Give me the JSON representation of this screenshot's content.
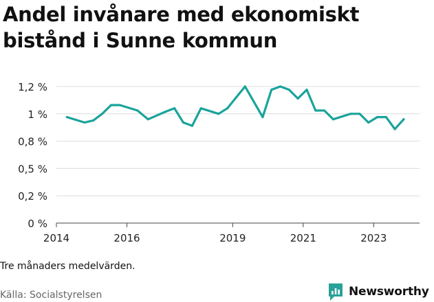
{
  "title": "Andel invånare med ekonomiskt bistånd i Sunne kommun",
  "note": "Tre månaders medelvärden.",
  "source": "Källa: Socialstyrelsen",
  "brand": {
    "name": "Newsworthy",
    "color": "#2aa198"
  },
  "chart_data": {
    "type": "line",
    "title": "Andel invånare med ekonomiskt bistånd i Sunne kommun",
    "xlabel": "",
    "ylabel": "",
    "xlim": [
      2014.0,
      2024.3
    ],
    "ylim": [
      0,
      1.25
    ],
    "y_ticks": [
      0,
      0.25,
      0.5,
      0.75,
      1.0,
      1.25
    ],
    "y_tick_labels": [
      "0 %",
      "0,2 %",
      "0,5 %",
      "0,8 %",
      "1 %",
      "1,2 %"
    ],
    "x_ticks": [
      2014,
      2016,
      2019,
      2021,
      2023
    ],
    "x_tick_labels": [
      "2014",
      "2016",
      "2019",
      "2021",
      "2023"
    ],
    "grid": true,
    "color": "#1aa39a",
    "series": [
      {
        "points": [
          [
            2014.3,
            0.97
          ],
          [
            2014.8,
            0.92
          ],
          [
            2015.05,
            0.94
          ],
          [
            2015.3,
            1.0
          ],
          [
            2015.55,
            1.08
          ],
          [
            2015.8,
            1.08
          ],
          [
            2016.3,
            1.03
          ],
          [
            2016.6,
            0.95
          ],
          [
            2017.1,
            1.02
          ],
          [
            2017.35,
            1.05
          ],
          [
            2017.6,
            0.92
          ],
          [
            2017.85,
            0.89
          ],
          [
            2018.1,
            1.05
          ],
          [
            2018.6,
            1.0
          ],
          [
            2018.85,
            1.05
          ],
          [
            2019.1,
            1.15
          ],
          [
            2019.35,
            1.25
          ],
          [
            2019.6,
            1.11
          ],
          [
            2019.85,
            0.97
          ],
          [
            2020.1,
            1.22
          ],
          [
            2020.35,
            1.25
          ],
          [
            2020.6,
            1.22
          ],
          [
            2020.85,
            1.14
          ],
          [
            2021.1,
            1.22
          ],
          [
            2021.35,
            1.03
          ],
          [
            2021.6,
            1.03
          ],
          [
            2021.85,
            0.95
          ],
          [
            2022.35,
            1.0
          ],
          [
            2022.6,
            1.0
          ],
          [
            2022.85,
            0.92
          ],
          [
            2023.1,
            0.97
          ],
          [
            2023.35,
            0.97
          ],
          [
            2023.6,
            0.86
          ],
          [
            2023.85,
            0.95
          ]
        ]
      }
    ]
  }
}
